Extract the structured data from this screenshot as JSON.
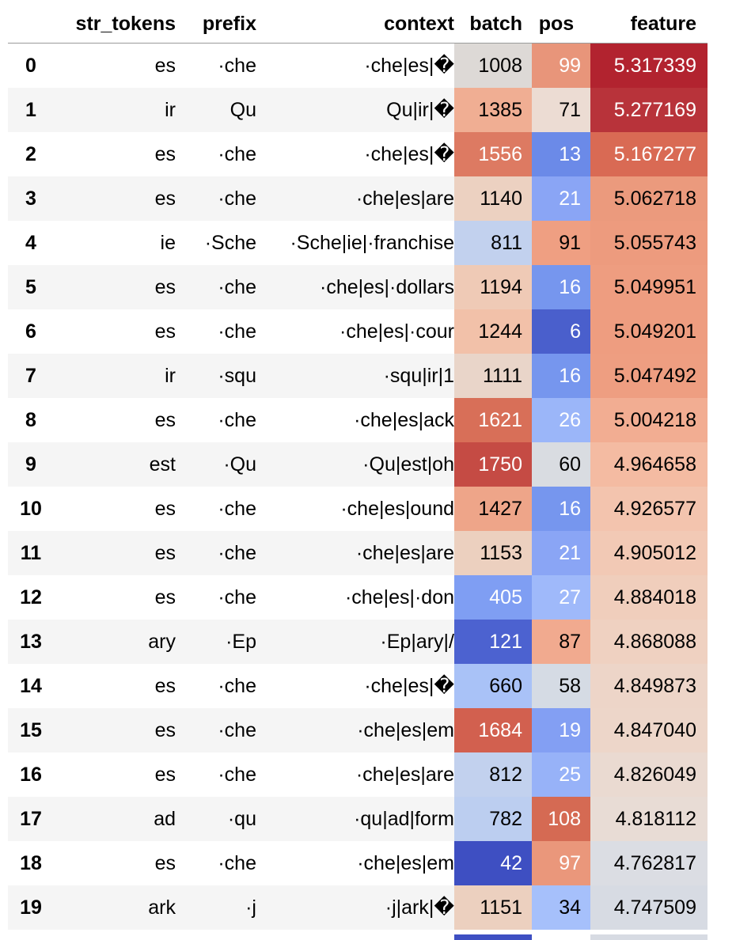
{
  "table": {
    "headers": {
      "index": "",
      "str_tokens": "str_tokens",
      "prefix": "prefix",
      "context": "context",
      "batch": "batch",
      "pos": "pos",
      "feature": "feature"
    },
    "rows": [
      {
        "index": "0",
        "str_tokens": "es",
        "prefix": "·che",
        "context": "·che|es|�",
        "batch": "1008",
        "pos": "99",
        "feature": "5.317339",
        "batch_bg": "#ddd9d6",
        "batch_fg": "#000000",
        "pos_bg": "#e8957a",
        "pos_fg": "#ffffff",
        "feature_bg": "#b2232f",
        "feature_fg": "#ffffff"
      },
      {
        "index": "1",
        "str_tokens": "ir",
        "prefix": "Qu",
        "context": "Qu|ir|�",
        "batch": "1385",
        "pos": "71",
        "feature": "5.277169",
        "batch_bg": "#f0ae93",
        "batch_fg": "#000000",
        "pos_bg": "#ecdcd3",
        "pos_fg": "#000000",
        "feature_bg": "#b8333a",
        "feature_fg": "#ffffff"
      },
      {
        "index": "2",
        "str_tokens": "es",
        "prefix": "·che",
        "context": "·che|es|�",
        "batch": "1556",
        "pos": "13",
        "feature": "5.167277",
        "batch_bg": "#dd7a62",
        "batch_fg": "#ffffff",
        "pos_bg": "#6b8ae8",
        "pos_fg": "#ffffff",
        "feature_bg": "#d96a54",
        "feature_fg": "#ffffff"
      },
      {
        "index": "3",
        "str_tokens": "es",
        "prefix": "·che",
        "context": "·che|es|are",
        "batch": "1140",
        "pos": "21",
        "feature": "5.062718",
        "batch_bg": "#ecd1c1",
        "batch_fg": "#000000",
        "pos_bg": "#8aa5f5",
        "pos_fg": "#ffffff",
        "feature_bg": "#eb9a7d",
        "feature_fg": "#000000"
      },
      {
        "index": "4",
        "str_tokens": "ie",
        "prefix": "·Sche",
        "context": "·Sche|ie|·franchise",
        "batch": "811",
        "pos": "91",
        "feature": "5.055743",
        "batch_bg": "#c2d1ee",
        "batch_fg": "#000000",
        "pos_bg": "#ef9f82",
        "pos_fg": "#000000",
        "feature_bg": "#ed9b7e",
        "feature_fg": "#000000"
      },
      {
        "index": "5",
        "str_tokens": "es",
        "prefix": "·che",
        "context": "·che|es|·dollars",
        "batch": "1194",
        "pos": "16",
        "feature": "5.049951",
        "batch_bg": "#efcab6",
        "batch_fg": "#000000",
        "pos_bg": "#7696ee",
        "pos_fg": "#ffffff",
        "feature_bg": "#ee9d80",
        "feature_fg": "#000000"
      },
      {
        "index": "6",
        "str_tokens": "es",
        "prefix": "·che",
        "context": "·che|es|·cour",
        "batch": "1244",
        "pos": "6",
        "feature": "5.049201",
        "batch_bg": "#f2c1a9",
        "batch_fg": "#000000",
        "pos_bg": "#4a5fcc",
        "pos_fg": "#ffffff",
        "feature_bg": "#ee9d80",
        "feature_fg": "#000000"
      },
      {
        "index": "7",
        "str_tokens": "ir",
        "prefix": "·squ",
        "context": "·squ|ir|1",
        "batch": "1111",
        "pos": "16",
        "feature": "5.047492",
        "batch_bg": "#e9d5c9",
        "batch_fg": "#000000",
        "pos_bg": "#7696ee",
        "pos_fg": "#ffffff",
        "feature_bg": "#ee9e81",
        "feature_fg": "#000000"
      },
      {
        "index": "8",
        "str_tokens": "es",
        "prefix": "·che",
        "context": "·che|es|ack",
        "batch": "1621",
        "pos": "26",
        "feature": "5.004218",
        "batch_bg": "#d86f58",
        "batch_fg": "#ffffff",
        "pos_bg": "#9bb6f9",
        "pos_fg": "#ffffff",
        "feature_bg": "#f2ad92",
        "feature_fg": "#000000"
      },
      {
        "index": "9",
        "str_tokens": "est",
        "prefix": "·Qu",
        "context": "·Qu|est|oh",
        "batch": "1750",
        "pos": "60",
        "feature": "4.964658",
        "batch_bg": "#c54b44",
        "batch_fg": "#ffffff",
        "pos_bg": "#d9dce1",
        "pos_fg": "#000000",
        "feature_bg": "#f4bba2",
        "feature_fg": "#000000"
      },
      {
        "index": "10",
        "str_tokens": "es",
        "prefix": "·che",
        "context": "·che|es|ound",
        "batch": "1427",
        "pos": "16",
        "feature": "4.926577",
        "batch_bg": "#eea589",
        "batch_fg": "#000000",
        "pos_bg": "#7696ee",
        "pos_fg": "#ffffff",
        "feature_bg": "#f3c4ae",
        "feature_fg": "#000000"
      },
      {
        "index": "11",
        "str_tokens": "es",
        "prefix": "·che",
        "context": "·che|es|are",
        "batch": "1153",
        "pos": "21",
        "feature": "4.905012",
        "batch_bg": "#ecd0bf",
        "batch_fg": "#000000",
        "pos_bg": "#8aa5f5",
        "pos_fg": "#ffffff",
        "feature_bg": "#f2c9b5",
        "feature_fg": "#000000"
      },
      {
        "index": "12",
        "str_tokens": "es",
        "prefix": "·che",
        "context": "·che|es|·don",
        "batch": "405",
        "pos": "27",
        "feature": "4.884018",
        "batch_bg": "#7f9ef3",
        "batch_fg": "#ffffff",
        "pos_bg": "#9fb9fa",
        "pos_fg": "#ffffff",
        "feature_bg": "#f0cebc",
        "feature_fg": "#000000"
      },
      {
        "index": "13",
        "str_tokens": "ary",
        "prefix": "·Ep",
        "context": "·Ep|ary|/",
        "batch": "121",
        "pos": "87",
        "feature": "4.868088",
        "batch_bg": "#4c62d0",
        "batch_fg": "#ffffff",
        "pos_bg": "#f1aa8f",
        "pos_fg": "#000000",
        "feature_bg": "#efd1c1",
        "feature_fg": "#000000"
      },
      {
        "index": "14",
        "str_tokens": "es",
        "prefix": "·che",
        "context": "·che|es|�",
        "batch": "660",
        "pos": "58",
        "feature": "4.849873",
        "batch_bg": "#a9c2f7",
        "batch_fg": "#000000",
        "pos_bg": "#d5dbe4",
        "pos_fg": "#000000",
        "feature_bg": "#edd5c8",
        "feature_fg": "#000000"
      },
      {
        "index": "15",
        "str_tokens": "es",
        "prefix": "·che",
        "context": "·che|es|em",
        "batch": "1684",
        "pos": "19",
        "feature": "4.847040",
        "batch_bg": "#d2604f",
        "batch_fg": "#ffffff",
        "pos_bg": "#839ff3",
        "pos_fg": "#ffffff",
        "feature_bg": "#edd6c9",
        "feature_fg": "#000000"
      },
      {
        "index": "16",
        "str_tokens": "es",
        "prefix": "·che",
        "context": "·che|es|are",
        "batch": "812",
        "pos": "25",
        "feature": "4.826049",
        "batch_bg": "#c2d1ee",
        "batch_fg": "#000000",
        "pos_bg": "#97b2f8",
        "pos_fg": "#ffffff",
        "feature_bg": "#eadad1",
        "feature_fg": "#000000"
      },
      {
        "index": "17",
        "str_tokens": "ad",
        "prefix": "·qu",
        "context": "·qu|ad|form",
        "batch": "782",
        "pos": "108",
        "feature": "4.818112",
        "batch_bg": "#bccef0",
        "batch_fg": "#000000",
        "pos_bg": "#d56a53",
        "pos_fg": "#ffffff",
        "feature_bg": "#e8dcd5",
        "feature_fg": "#000000"
      },
      {
        "index": "18",
        "str_tokens": "es",
        "prefix": "·che",
        "context": "·che|es|em",
        "batch": "42",
        "pos": "97",
        "feature": "4.762817",
        "batch_bg": "#3e4fc2",
        "batch_fg": "#ffffff",
        "pos_bg": "#ea977b",
        "pos_fg": "#ffffff",
        "feature_bg": "#dbdde3",
        "feature_fg": "#000000"
      },
      {
        "index": "19",
        "str_tokens": "ark",
        "prefix": "·j",
        "context": "·j|ark|�",
        "batch": "1151",
        "pos": "34",
        "feature": "4.747509",
        "batch_bg": "#ecd0bf",
        "batch_fg": "#000000",
        "pos_bg": "#a6c0fb",
        "pos_fg": "#000000",
        "feature_bg": "#d7dbe3",
        "feature_fg": "#000000"
      }
    ],
    "tail_colors": {
      "batch": "#3e4fc2",
      "pos": "#ffffff",
      "feature": "#d7dbe3"
    }
  }
}
